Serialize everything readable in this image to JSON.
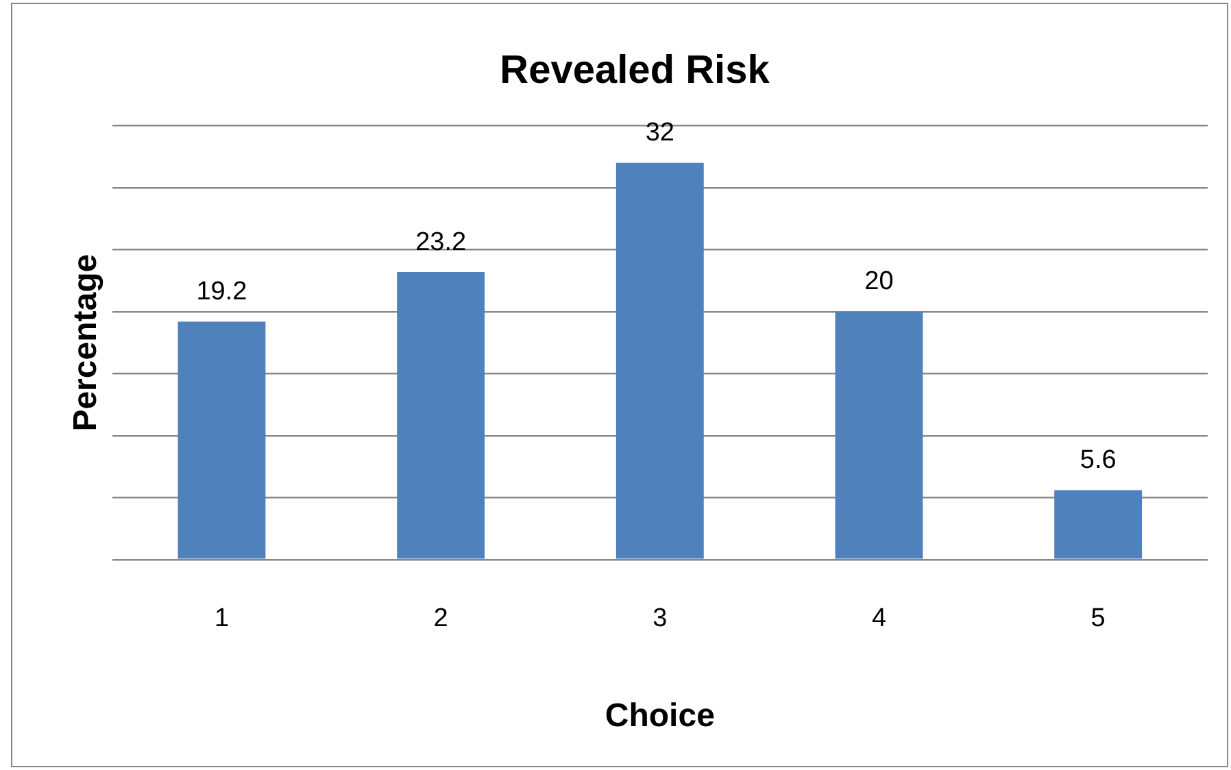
{
  "chart_data": {
    "type": "bar",
    "title": "Revealed Risk",
    "xlabel": "Choice",
    "ylabel": "Percentage",
    "categories": [
      "1",
      "2",
      "3",
      "4",
      "5"
    ],
    "values": [
      19.2,
      23.2,
      32,
      20,
      5.6
    ],
    "color": "#4f81bd",
    "ylim": [
      0,
      35
    ],
    "yticks": [
      {
        "value": 0,
        "label": null
      },
      {
        "value": 5,
        "label": null
      },
      {
        "value": 10,
        "label": null
      },
      {
        "value": 15,
        "label": null
      },
      {
        "value": 20,
        "label": null
      },
      {
        "value": 25,
        "label": null
      },
      {
        "value": 30,
        "label": null
      },
      {
        "value": 35,
        "label": null
      }
    ],
    "tick_labels": "x",
    "grid": "y",
    "legend": false,
    "data_labels": true
  }
}
